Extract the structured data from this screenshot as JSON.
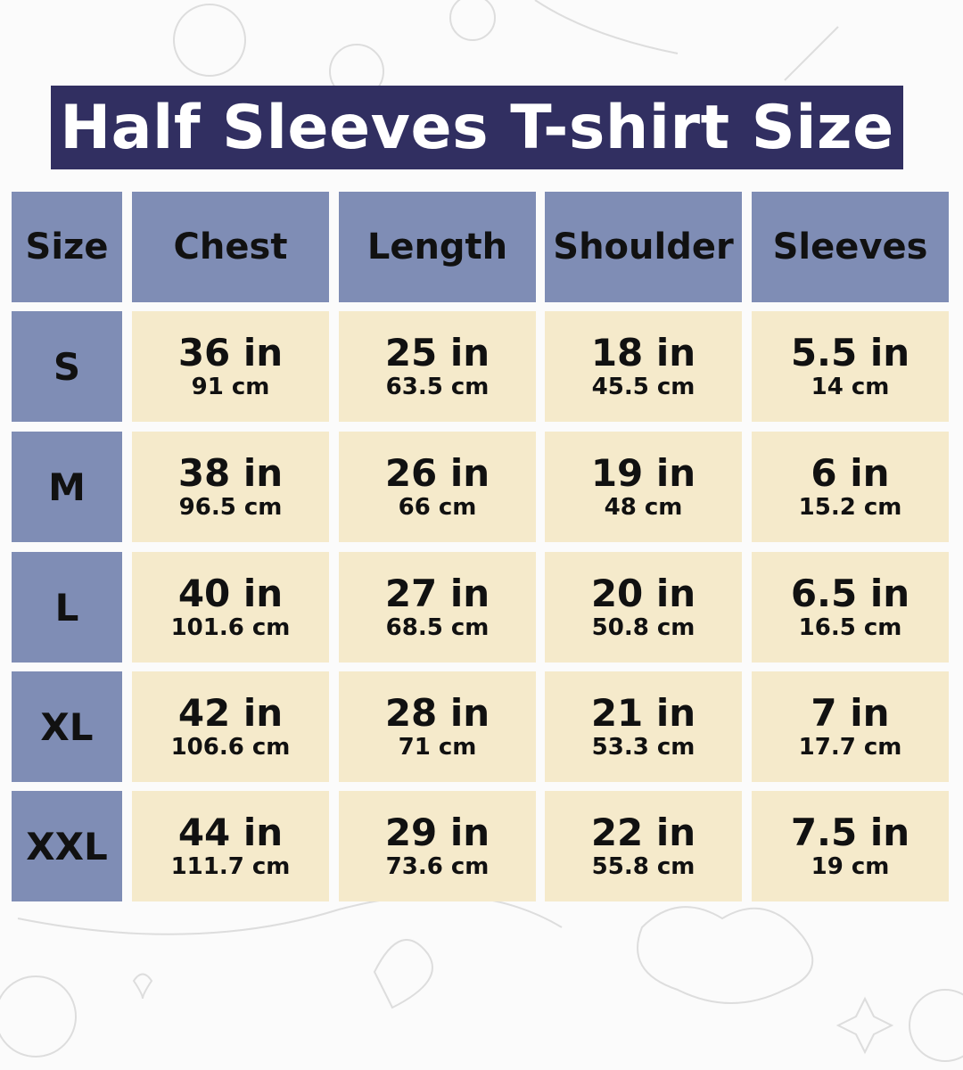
{
  "title": "Half Sleeves T-shirt Size",
  "colors": {
    "title_bg": "#312f61",
    "header_bg": "#7f8db5",
    "cell_bg": "#f5eacb"
  },
  "headers": [
    "Size",
    "Chest",
    "Length",
    "Shoulder",
    "Sleeves"
  ],
  "rows": [
    {
      "size": "S",
      "values": [
        {
          "in": "36 in",
          "cm": "91 cm"
        },
        {
          "in": "25 in",
          "cm": "63.5 cm"
        },
        {
          "in": "18 in",
          "cm": "45.5 cm"
        },
        {
          "in": "5.5 in",
          "cm": "14 cm"
        }
      ]
    },
    {
      "size": "M",
      "values": [
        {
          "in": "38 in",
          "cm": "96.5 cm"
        },
        {
          "in": "26 in",
          "cm": "66 cm"
        },
        {
          "in": "19 in",
          "cm": "48 cm"
        },
        {
          "in": "6 in",
          "cm": "15.2 cm"
        }
      ]
    },
    {
      "size": "L",
      "values": [
        {
          "in": "40 in",
          "cm": "101.6 cm"
        },
        {
          "in": "27 in",
          "cm": "68.5 cm"
        },
        {
          "in": "20 in",
          "cm": "50.8 cm"
        },
        {
          "in": "6.5 in",
          "cm": "16.5 cm"
        }
      ]
    },
    {
      "size": "XL",
      "values": [
        {
          "in": "42 in",
          "cm": "106.6 cm"
        },
        {
          "in": "28 in",
          "cm": "71 cm"
        },
        {
          "in": "21 in",
          "cm": "53.3 cm"
        },
        {
          "in": "7 in",
          "cm": "17.7 cm"
        }
      ]
    },
    {
      "size": "XXL",
      "values": [
        {
          "in": "44 in",
          "cm": "111.7 cm"
        },
        {
          "in": "29 in",
          "cm": "73.6 cm"
        },
        {
          "in": "22 in",
          "cm": "55.8 cm"
        },
        {
          "in": "7.5 in",
          "cm": "19 cm"
        }
      ]
    }
  ]
}
